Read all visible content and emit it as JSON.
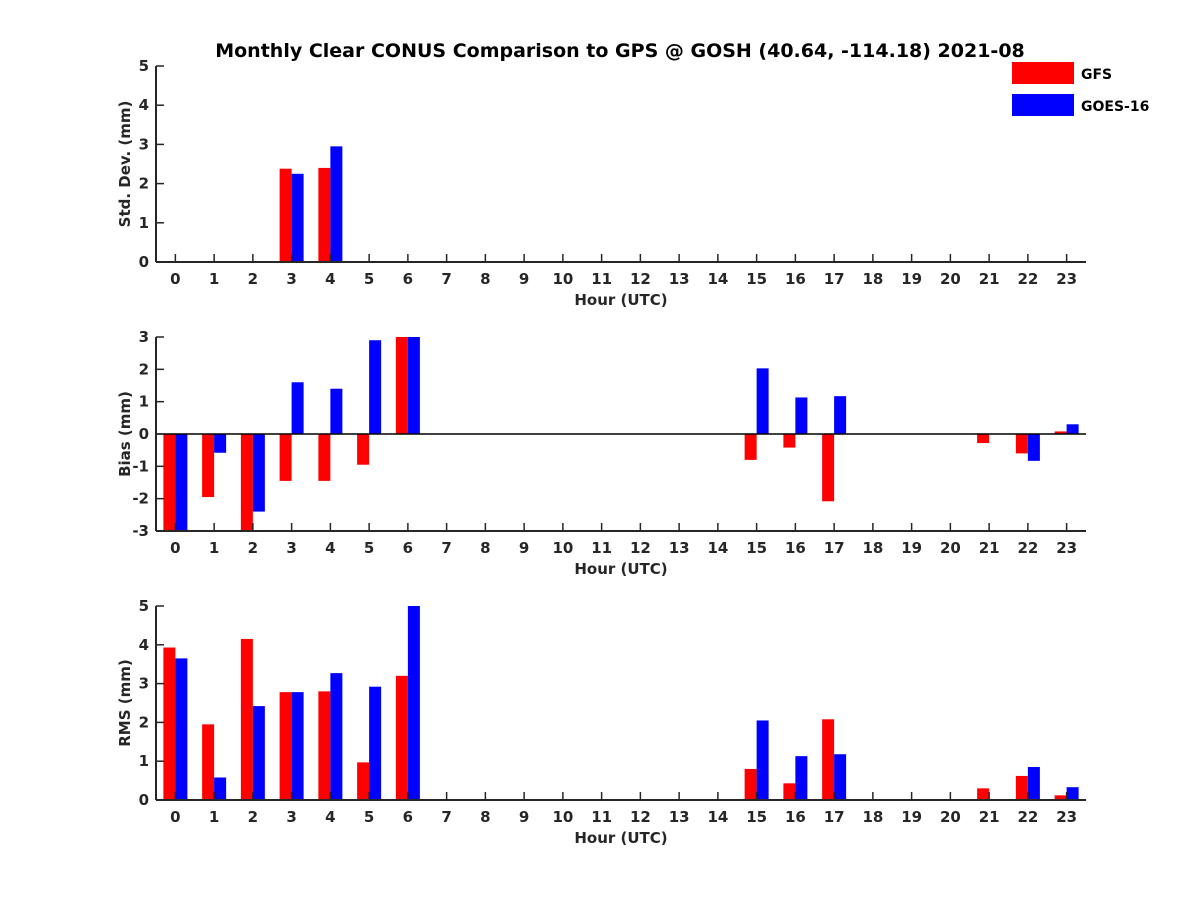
{
  "title": "Monthly Clear CONUS Comparison to GPS @ GOSH (40.64, -114.18) 2021-08",
  "legend": [
    {
      "label": "GFS",
      "color": "#ff0000"
    },
    {
      "label": "GOES-16",
      "color": "#0000ff"
    }
  ],
  "chart_data": [
    {
      "type": "bar",
      "ylabel": "Std. Dev. (mm)",
      "xlabel": "Hour (UTC)",
      "ylim": [
        0,
        5
      ],
      "yticks": [
        0,
        1,
        2,
        3,
        4,
        5
      ],
      "categories": [
        "0",
        "1",
        "2",
        "3",
        "4",
        "5",
        "6",
        "7",
        "8",
        "9",
        "10",
        "11",
        "12",
        "13",
        "14",
        "15",
        "16",
        "17",
        "18",
        "19",
        "20",
        "21",
        "22",
        "23"
      ],
      "series": [
        {
          "name": "GFS",
          "color": "#ff0000",
          "values": [
            null,
            null,
            null,
            2.38,
            2.4,
            null,
            null,
            null,
            null,
            null,
            null,
            null,
            null,
            null,
            null,
            null,
            null,
            null,
            null,
            null,
            null,
            null,
            null,
            null
          ]
        },
        {
          "name": "GOES-16",
          "color": "#0000ff",
          "values": [
            null,
            null,
            null,
            2.25,
            2.95,
            null,
            null,
            null,
            null,
            null,
            null,
            null,
            null,
            null,
            null,
            null,
            null,
            null,
            null,
            null,
            null,
            null,
            null,
            null
          ]
        }
      ],
      "legend_position": "top-right"
    },
    {
      "type": "bar",
      "ylabel": "Bias (mm)",
      "xlabel": "Hour (UTC)",
      "ylim": [
        -3,
        3
      ],
      "yticks": [
        -3,
        -2,
        -1,
        0,
        1,
        2,
        3
      ],
      "zero_line": true,
      "categories": [
        "0",
        "1",
        "2",
        "3",
        "4",
        "5",
        "6",
        "7",
        "8",
        "9",
        "10",
        "11",
        "12",
        "13",
        "14",
        "15",
        "16",
        "17",
        "18",
        "19",
        "20",
        "21",
        "22",
        "23"
      ],
      "series": [
        {
          "name": "GFS",
          "color": "#ff0000",
          "values": [
            -3.0,
            -1.95,
            -3.0,
            -1.45,
            -1.45,
            -0.95,
            3.0,
            null,
            null,
            null,
            null,
            null,
            null,
            null,
            null,
            -0.8,
            -0.42,
            -2.08,
            null,
            null,
            null,
            -0.28,
            -0.6,
            0.08
          ]
        },
        {
          "name": "GOES-16",
          "color": "#0000ff",
          "values": [
            -3.0,
            -0.58,
            -2.4,
            1.6,
            1.4,
            2.9,
            3.0,
            null,
            null,
            null,
            null,
            null,
            null,
            null,
            null,
            2.03,
            1.13,
            1.17,
            null,
            null,
            null,
            null,
            -0.83,
            0.3
          ]
        }
      ]
    },
    {
      "type": "bar",
      "ylabel": "RMS (mm)",
      "xlabel": "Hour (UTC)",
      "ylim": [
        0,
        5
      ],
      "yticks": [
        0,
        1,
        2,
        3,
        4,
        5
      ],
      "categories": [
        "0",
        "1",
        "2",
        "3",
        "4",
        "5",
        "6",
        "7",
        "8",
        "9",
        "10",
        "11",
        "12",
        "13",
        "14",
        "15",
        "16",
        "17",
        "18",
        "19",
        "20",
        "21",
        "22",
        "23"
      ],
      "series": [
        {
          "name": "GFS",
          "color": "#ff0000",
          "values": [
            3.93,
            1.95,
            4.15,
            2.78,
            2.8,
            0.97,
            3.2,
            null,
            null,
            null,
            null,
            null,
            null,
            null,
            null,
            0.8,
            0.43,
            2.08,
            null,
            null,
            null,
            0.3,
            0.62,
            0.12
          ]
        },
        {
          "name": "GOES-16",
          "color": "#0000ff",
          "values": [
            3.65,
            0.58,
            2.42,
            2.78,
            3.27,
            2.92,
            5.0,
            null,
            null,
            null,
            null,
            null,
            null,
            null,
            null,
            2.05,
            1.13,
            1.18,
            null,
            null,
            null,
            null,
            0.85,
            0.33
          ]
        }
      ]
    }
  ]
}
